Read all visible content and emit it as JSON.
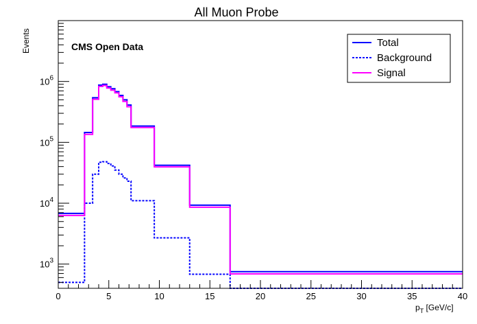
{
  "chart_data": {
    "type": "histogram",
    "title": "All Muon Probe",
    "annotation": "CMS Open Data",
    "xlabel_main": "p",
    "xlabel_sub": "T",
    "xlabel_unit": " [GeV/c]",
    "ylabel": "Events",
    "xlim": [
      0,
      40
    ],
    "ylim": [
      400,
      10000000
    ],
    "yscale": "log",
    "grid": false,
    "legend_position": "top-right",
    "bin_edges": [
      0,
      2.6,
      3.4,
      4.0,
      4.4,
      4.8,
      5.2,
      5.6,
      6.0,
      6.4,
      6.8,
      7.2,
      9.5,
      13.0,
      17.0,
      40.0
    ],
    "x_ticks": [
      0,
      5,
      10,
      15,
      20,
      25,
      30,
      35,
      40
    ],
    "x_tick_labels": [
      "0",
      "5",
      "10",
      "15",
      "20",
      "25",
      "30",
      "35",
      "40"
    ],
    "y_ticks": [
      1000,
      10000,
      100000,
      1000000
    ],
    "y_tick_labels": [
      {
        "base": "10",
        "exp": "3"
      },
      {
        "base": "10",
        "exp": "4"
      },
      {
        "base": "10",
        "exp": "5"
      },
      {
        "base": "10",
        "exp": "6"
      }
    ],
    "series": [
      {
        "name": "Total",
        "color": "#0000ff",
        "style": "solid",
        "values": [
          6800,
          145000,
          540000,
          870000,
          900000,
          820000,
          760000,
          680000,
          590000,
          500000,
          410000,
          185000,
          42000,
          9300,
          750
        ]
      },
      {
        "name": "Background",
        "color": "#0000ff",
        "style": "dotted",
        "values": [
          500,
          10000,
          30000,
          47000,
          48000,
          45000,
          41000,
          35000,
          30000,
          26000,
          23000,
          11000,
          2700,
          680,
          360
        ]
      },
      {
        "name": "Signal",
        "color": "#ff00ff",
        "style": "solid",
        "values": [
          6300,
          135000,
          510000,
          830000,
          860000,
          780000,
          720000,
          650000,
          560000,
          470000,
          385000,
          175000,
          39500,
          8600,
          690
        ]
      }
    ]
  }
}
